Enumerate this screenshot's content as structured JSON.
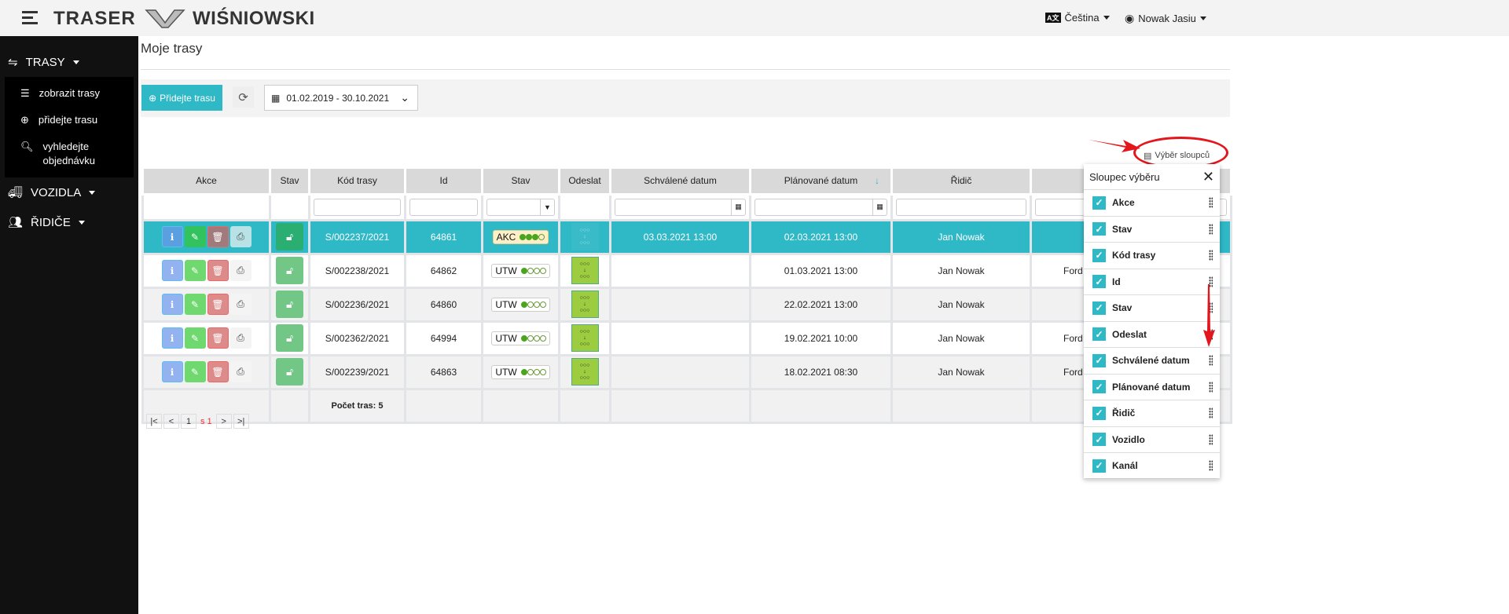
{
  "header": {
    "app": "TRASER",
    "brand": "WIŚNIOWSKI",
    "language": "Čeština",
    "user": "Nowak Jasiu"
  },
  "sidebar": {
    "trasy": "TRASY",
    "sub": [
      "zobrazit trasy",
      "přidejte trasu",
      "vyhledejte objednávku"
    ],
    "vozidla": "VOZIDLA",
    "ridice": "ŘIDIČE"
  },
  "page": {
    "title": "Moje trasy",
    "add_button": "Přidejte trasu",
    "date_range": "01.02.2019 - 30.10.2021",
    "column_select": "Výběr sloupců"
  },
  "table": {
    "headers": [
      "Akce",
      "Stav",
      "Kód trasy",
      "Id",
      "Stav",
      "Odeslat",
      "Schválené datum",
      "Plánované datum",
      "Řidič",
      ""
    ],
    "rows": [
      {
        "kod": "S/002237/2021",
        "id": "64861",
        "stav": "AKC",
        "dots": 3,
        "schvalene": "03.03.2021 13:00",
        "planovane": "02.03.2021 13:00",
        "ridic": "Jan Nowak",
        "vozidlo": ""
      },
      {
        "kod": "S/002238/2021",
        "id": "64862",
        "stav": "UTW",
        "dots": 1,
        "schvalene": "",
        "planovane": "01.03.2021 13:00",
        "ridic": "Jan Nowak",
        "vozidlo": "Ford T"
      },
      {
        "kod": "S/002236/2021",
        "id": "64860",
        "stav": "UTW",
        "dots": 1,
        "schvalene": "",
        "planovane": "22.02.2021 13:00",
        "ridic": "Jan Nowak",
        "vozidlo": ""
      },
      {
        "kod": "S/002362/2021",
        "id": "64994",
        "stav": "UTW",
        "dots": 1,
        "schvalene": "",
        "planovane": "19.02.2021 10:00",
        "ridic": "Jan Nowak",
        "vozidlo": "Ford T"
      },
      {
        "kod": "S/002239/2021",
        "id": "64863",
        "stav": "UTW",
        "dots": 1,
        "schvalene": "",
        "planovane": "18.02.2021 08:30",
        "ridic": "Jan Nowak",
        "vozidlo": "Ford T"
      }
    ],
    "footer": "Počet tras: 5"
  },
  "pager": {
    "page": "1",
    "of": "s 1"
  },
  "panel": {
    "title": "Sloupec výběru",
    "items": [
      "Akce",
      "Stav",
      "Kód trasy",
      "Id",
      "Stav",
      "Odeslat",
      "Schválené datum",
      "Plánované datum",
      "Řidič",
      "Vozidlo",
      "Kanál"
    ]
  },
  "colors": {
    "accent": "#2fb8c6",
    "annotation": "#e3161d"
  }
}
